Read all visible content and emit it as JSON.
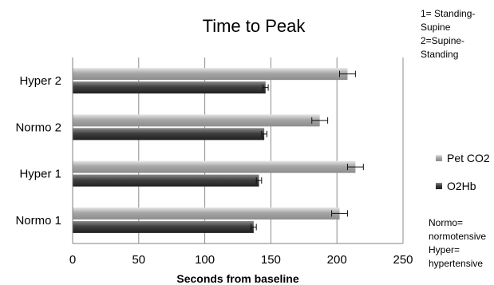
{
  "chart_data": {
    "type": "bar",
    "orientation": "horizontal",
    "title": "Time to Peak",
    "xlabel": "Seconds from baseline",
    "ylabel": "",
    "xlim": [
      0,
      250
    ],
    "xticks": [
      0,
      50,
      100,
      150,
      200,
      250
    ],
    "categories": [
      "Normo 1",
      "Hyper 1",
      "Normo 2",
      "Hyper 2"
    ],
    "series": [
      {
        "name": "Pet CO2",
        "values": [
          202,
          214,
          187,
          208
        ],
        "errors": [
          6,
          6,
          6,
          6
        ],
        "color": "#a6a6a6"
      },
      {
        "name": "O2Hb",
        "values": [
          137,
          141,
          145,
          146
        ],
        "errors": [
          2,
          2,
          2,
          2
        ],
        "color": "#404040"
      }
    ],
    "legend_position": "right",
    "grid": "vertical",
    "annotations": {
      "condition_key": [
        "1= Standing-",
        "Supine",
        "2=Supine-",
        "Standing"
      ],
      "group_key": [
        "Normo=",
        "normotensive",
        "Hyper=",
        "hypertensive"
      ]
    }
  }
}
